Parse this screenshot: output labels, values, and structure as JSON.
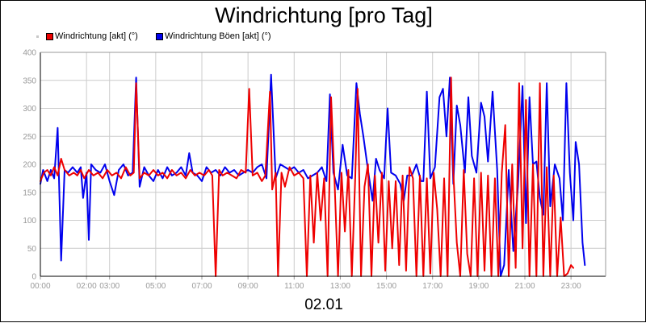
{
  "chart_data": {
    "type": "line",
    "title": "Windrichtung [pro Tag]",
    "xlabel": "02.01",
    "ylabel": "",
    "ylim": [
      0,
      400
    ],
    "yticks": [
      "0",
      "50",
      "100",
      "150",
      "200",
      "250",
      "300",
      "350",
      "400"
    ],
    "xticks": [
      "00:00",
      "02:00",
      "03:00",
      "05:00",
      "07:00",
      "09:00",
      "11:00",
      "13:00",
      "15:00",
      "17:00",
      "19:00",
      "21:00",
      "23:00"
    ],
    "xtick_hours": [
      0,
      2,
      3,
      5,
      7,
      9,
      11,
      13,
      15,
      17,
      19,
      21,
      23
    ],
    "x_range_hours": [
      0,
      24.5
    ],
    "grid": true,
    "legend": "top-left",
    "series": [
      {
        "name": "Windrichtung Böen [akt] (°)",
        "color": "#0000ee",
        "points": [
          [
            0.0,
            165
          ],
          [
            0.12,
            190
          ],
          [
            0.3,
            170
          ],
          [
            0.45,
            190
          ],
          [
            0.6,
            175
          ],
          [
            0.75,
            265
          ],
          [
            0.9,
            28
          ],
          [
            1.05,
            190
          ],
          [
            1.2,
            185
          ],
          [
            1.4,
            195
          ],
          [
            1.6,
            185
          ],
          [
            1.75,
            195
          ],
          [
            1.85,
            140
          ],
          [
            2.0,
            185
          ],
          [
            2.1,
            65
          ],
          [
            2.2,
            200
          ],
          [
            2.4,
            190
          ],
          [
            2.6,
            185
          ],
          [
            2.8,
            200
          ],
          [
            3.0,
            170
          ],
          [
            3.2,
            145
          ],
          [
            3.4,
            190
          ],
          [
            3.6,
            200
          ],
          [
            3.8,
            180
          ],
          [
            4.0,
            185
          ],
          [
            4.15,
            355
          ],
          [
            4.3,
            160
          ],
          [
            4.5,
            195
          ],
          [
            4.7,
            180
          ],
          [
            4.9,
            170
          ],
          [
            5.1,
            190
          ],
          [
            5.3,
            175
          ],
          [
            5.5,
            195
          ],
          [
            5.7,
            180
          ],
          [
            5.9,
            185
          ],
          [
            6.1,
            195
          ],
          [
            6.3,
            180
          ],
          [
            6.45,
            220
          ],
          [
            6.6,
            185
          ],
          [
            6.8,
            180
          ],
          [
            7.0,
            170
          ],
          [
            7.2,
            195
          ],
          [
            7.4,
            185
          ],
          [
            7.6,
            190
          ],
          [
            7.8,
            180
          ],
          [
            8.0,
            195
          ],
          [
            8.2,
            185
          ],
          [
            8.4,
            190
          ],
          [
            8.6,
            180
          ],
          [
            8.8,
            185
          ],
          [
            9.0,
            190
          ],
          [
            9.2,
            185
          ],
          [
            9.4,
            195
          ],
          [
            9.6,
            200
          ],
          [
            9.8,
            175
          ],
          [
            10.0,
            360
          ],
          [
            10.2,
            175
          ],
          [
            10.4,
            200
          ],
          [
            10.6,
            195
          ],
          [
            10.8,
            190
          ],
          [
            11.0,
            195
          ],
          [
            11.2,
            185
          ],
          [
            11.4,
            190
          ],
          [
            11.6,
            175
          ],
          [
            11.8,
            180
          ],
          [
            12.0,
            185
          ],
          [
            12.2,
            195
          ],
          [
            12.4,
            170
          ],
          [
            12.55,
            325
          ],
          [
            12.7,
            185
          ],
          [
            12.9,
            155
          ],
          [
            13.1,
            235
          ],
          [
            13.3,
            180
          ],
          [
            13.5,
            175
          ],
          [
            13.7,
            345
          ],
          [
            13.85,
            290
          ],
          [
            14.0,
            250
          ],
          [
            14.2,
            190
          ],
          [
            14.4,
            135
          ],
          [
            14.55,
            210
          ],
          [
            14.7,
            190
          ],
          [
            14.9,
            175
          ],
          [
            15.05,
            300
          ],
          [
            15.2,
            185
          ],
          [
            15.4,
            180
          ],
          [
            15.6,
            165
          ],
          [
            15.75,
            135
          ],
          [
            15.9,
            180
          ],
          [
            16.1,
            180
          ],
          [
            16.3,
            200
          ],
          [
            16.5,
            170
          ],
          [
            16.6,
            170
          ],
          [
            16.75,
            330
          ],
          [
            16.9,
            175
          ],
          [
            17.1,
            195
          ],
          [
            17.3,
            320
          ],
          [
            17.45,
            335
          ],
          [
            17.6,
            250
          ],
          [
            17.75,
            355
          ],
          [
            17.9,
            165
          ],
          [
            18.05,
            305
          ],
          [
            18.2,
            270
          ],
          [
            18.4,
            185
          ],
          [
            18.55,
            320
          ],
          [
            18.7,
            215
          ],
          [
            18.9,
            185
          ],
          [
            19.1,
            310
          ],
          [
            19.25,
            285
          ],
          [
            19.4,
            205
          ],
          [
            19.6,
            330
          ],
          [
            19.8,
            190
          ],
          [
            19.95,
            0
          ],
          [
            20.1,
            20
          ],
          [
            20.3,
            190
          ],
          [
            20.5,
            45
          ],
          [
            20.7,
            160
          ],
          [
            20.9,
            340
          ],
          [
            21.05,
            95
          ],
          [
            21.2,
            320
          ],
          [
            21.35,
            200
          ],
          [
            21.5,
            205
          ],
          [
            21.65,
            140
          ],
          [
            21.8,
            110
          ],
          [
            21.95,
            345
          ],
          [
            22.1,
            125
          ],
          [
            22.3,
            200
          ],
          [
            22.5,
            175
          ],
          [
            22.65,
            100
          ],
          [
            22.8,
            345
          ],
          [
            22.95,
            185
          ],
          [
            23.1,
            100
          ],
          [
            23.2,
            240
          ],
          [
            23.35,
            200
          ],
          [
            23.5,
            60
          ],
          [
            23.6,
            20
          ]
        ]
      },
      {
        "name": "Windrichtung [akt] (°)",
        "color": "#ee0000",
        "points": [
          [
            0.0,
            170
          ],
          [
            0.15,
            185
          ],
          [
            0.3,
            190
          ],
          [
            0.45,
            180
          ],
          [
            0.6,
            195
          ],
          [
            0.75,
            180
          ],
          [
            0.9,
            210
          ],
          [
            1.05,
            190
          ],
          [
            1.25,
            180
          ],
          [
            1.45,
            185
          ],
          [
            1.6,
            180
          ],
          [
            1.75,
            190
          ],
          [
            1.9,
            175
          ],
          [
            2.1,
            190
          ],
          [
            2.3,
            180
          ],
          [
            2.5,
            185
          ],
          [
            2.7,
            175
          ],
          [
            2.9,
            190
          ],
          [
            3.1,
            180
          ],
          [
            3.3,
            185
          ],
          [
            3.5,
            175
          ],
          [
            3.7,
            195
          ],
          [
            3.9,
            180
          ],
          [
            4.05,
            185
          ],
          [
            4.15,
            345
          ],
          [
            4.3,
            175
          ],
          [
            4.5,
            185
          ],
          [
            4.7,
            180
          ],
          [
            4.9,
            190
          ],
          [
            5.1,
            180
          ],
          [
            5.3,
            185
          ],
          [
            5.5,
            175
          ],
          [
            5.7,
            190
          ],
          [
            5.9,
            180
          ],
          [
            6.1,
            185
          ],
          [
            6.3,
            175
          ],
          [
            6.5,
            190
          ],
          [
            6.7,
            180
          ],
          [
            6.9,
            185
          ],
          [
            7.1,
            180
          ],
          [
            7.3,
            190
          ],
          [
            7.45,
            180
          ],
          [
            7.6,
            0
          ],
          [
            7.75,
            190
          ],
          [
            7.9,
            180
          ],
          [
            8.1,
            185
          ],
          [
            8.3,
            180
          ],
          [
            8.5,
            175
          ],
          [
            8.7,
            190
          ],
          [
            8.9,
            185
          ],
          [
            9.05,
            335
          ],
          [
            9.2,
            180
          ],
          [
            9.4,
            185
          ],
          [
            9.6,
            170
          ],
          [
            9.75,
            180
          ],
          [
            9.95,
            330
          ],
          [
            10.05,
            155
          ],
          [
            10.2,
            185
          ],
          [
            10.3,
            0
          ],
          [
            10.45,
            185
          ],
          [
            10.6,
            160
          ],
          [
            10.8,
            195
          ],
          [
            11.0,
            180
          ],
          [
            11.2,
            185
          ],
          [
            11.4,
            175
          ],
          [
            11.55,
            0
          ],
          [
            11.7,
            180
          ],
          [
            11.85,
            60
          ],
          [
            12.0,
            185
          ],
          [
            12.15,
            100
          ],
          [
            12.3,
            175
          ],
          [
            12.45,
            0
          ],
          [
            12.6,
            320
          ],
          [
            12.75,
            170
          ],
          [
            12.9,
            0
          ],
          [
            13.05,
            185
          ],
          [
            13.2,
            80
          ],
          [
            13.35,
            190
          ],
          [
            13.5,
            0
          ],
          [
            13.65,
            180
          ],
          [
            13.75,
            335
          ],
          [
            13.9,
            0
          ],
          [
            14.05,
            160
          ],
          [
            14.2,
            200
          ],
          [
            14.35,
            0
          ],
          [
            14.5,
            180
          ],
          [
            14.65,
            60
          ],
          [
            14.8,
            185
          ],
          [
            14.95,
            10
          ],
          [
            15.1,
            170
          ],
          [
            15.25,
            50
          ],
          [
            15.4,
            170
          ],
          [
            15.55,
            20
          ],
          [
            15.7,
            180
          ],
          [
            15.85,
            10
          ],
          [
            16.0,
            195
          ],
          [
            16.15,
            175
          ],
          [
            16.3,
            0
          ],
          [
            16.45,
            180
          ],
          [
            16.6,
            0
          ],
          [
            16.75,
            175
          ],
          [
            16.9,
            5
          ],
          [
            17.05,
            185
          ],
          [
            17.2,
            120
          ],
          [
            17.35,
            0
          ],
          [
            17.5,
            175
          ],
          [
            17.65,
            0
          ],
          [
            17.8,
            355
          ],
          [
            17.9,
            185
          ],
          [
            18.05,
            60
          ],
          [
            18.2,
            0
          ],
          [
            18.35,
            190
          ],
          [
            18.5,
            40
          ],
          [
            18.65,
            0
          ],
          [
            18.8,
            175
          ],
          [
            18.95,
            0
          ],
          [
            19.1,
            185
          ],
          [
            19.25,
            10
          ],
          [
            19.4,
            180
          ],
          [
            19.55,
            0
          ],
          [
            19.7,
            175
          ],
          [
            19.85,
            0
          ],
          [
            20.0,
            185
          ],
          [
            20.15,
            270
          ],
          [
            20.3,
            0
          ],
          [
            20.45,
            200
          ],
          [
            20.6,
            15
          ],
          [
            20.75,
            345
          ],
          [
            20.9,
            50
          ],
          [
            21.05,
            315
          ],
          [
            21.2,
            0
          ],
          [
            21.35,
            200
          ],
          [
            21.5,
            0
          ],
          [
            21.65,
            345
          ],
          [
            21.8,
            0
          ],
          [
            21.95,
            195
          ],
          [
            22.1,
            0
          ],
          [
            22.25,
            180
          ],
          [
            22.4,
            0
          ],
          [
            22.55,
            105
          ],
          [
            22.7,
            0
          ],
          [
            22.85,
            5
          ],
          [
            23.0,
            20
          ],
          [
            23.1,
            15
          ]
        ]
      }
    ]
  }
}
